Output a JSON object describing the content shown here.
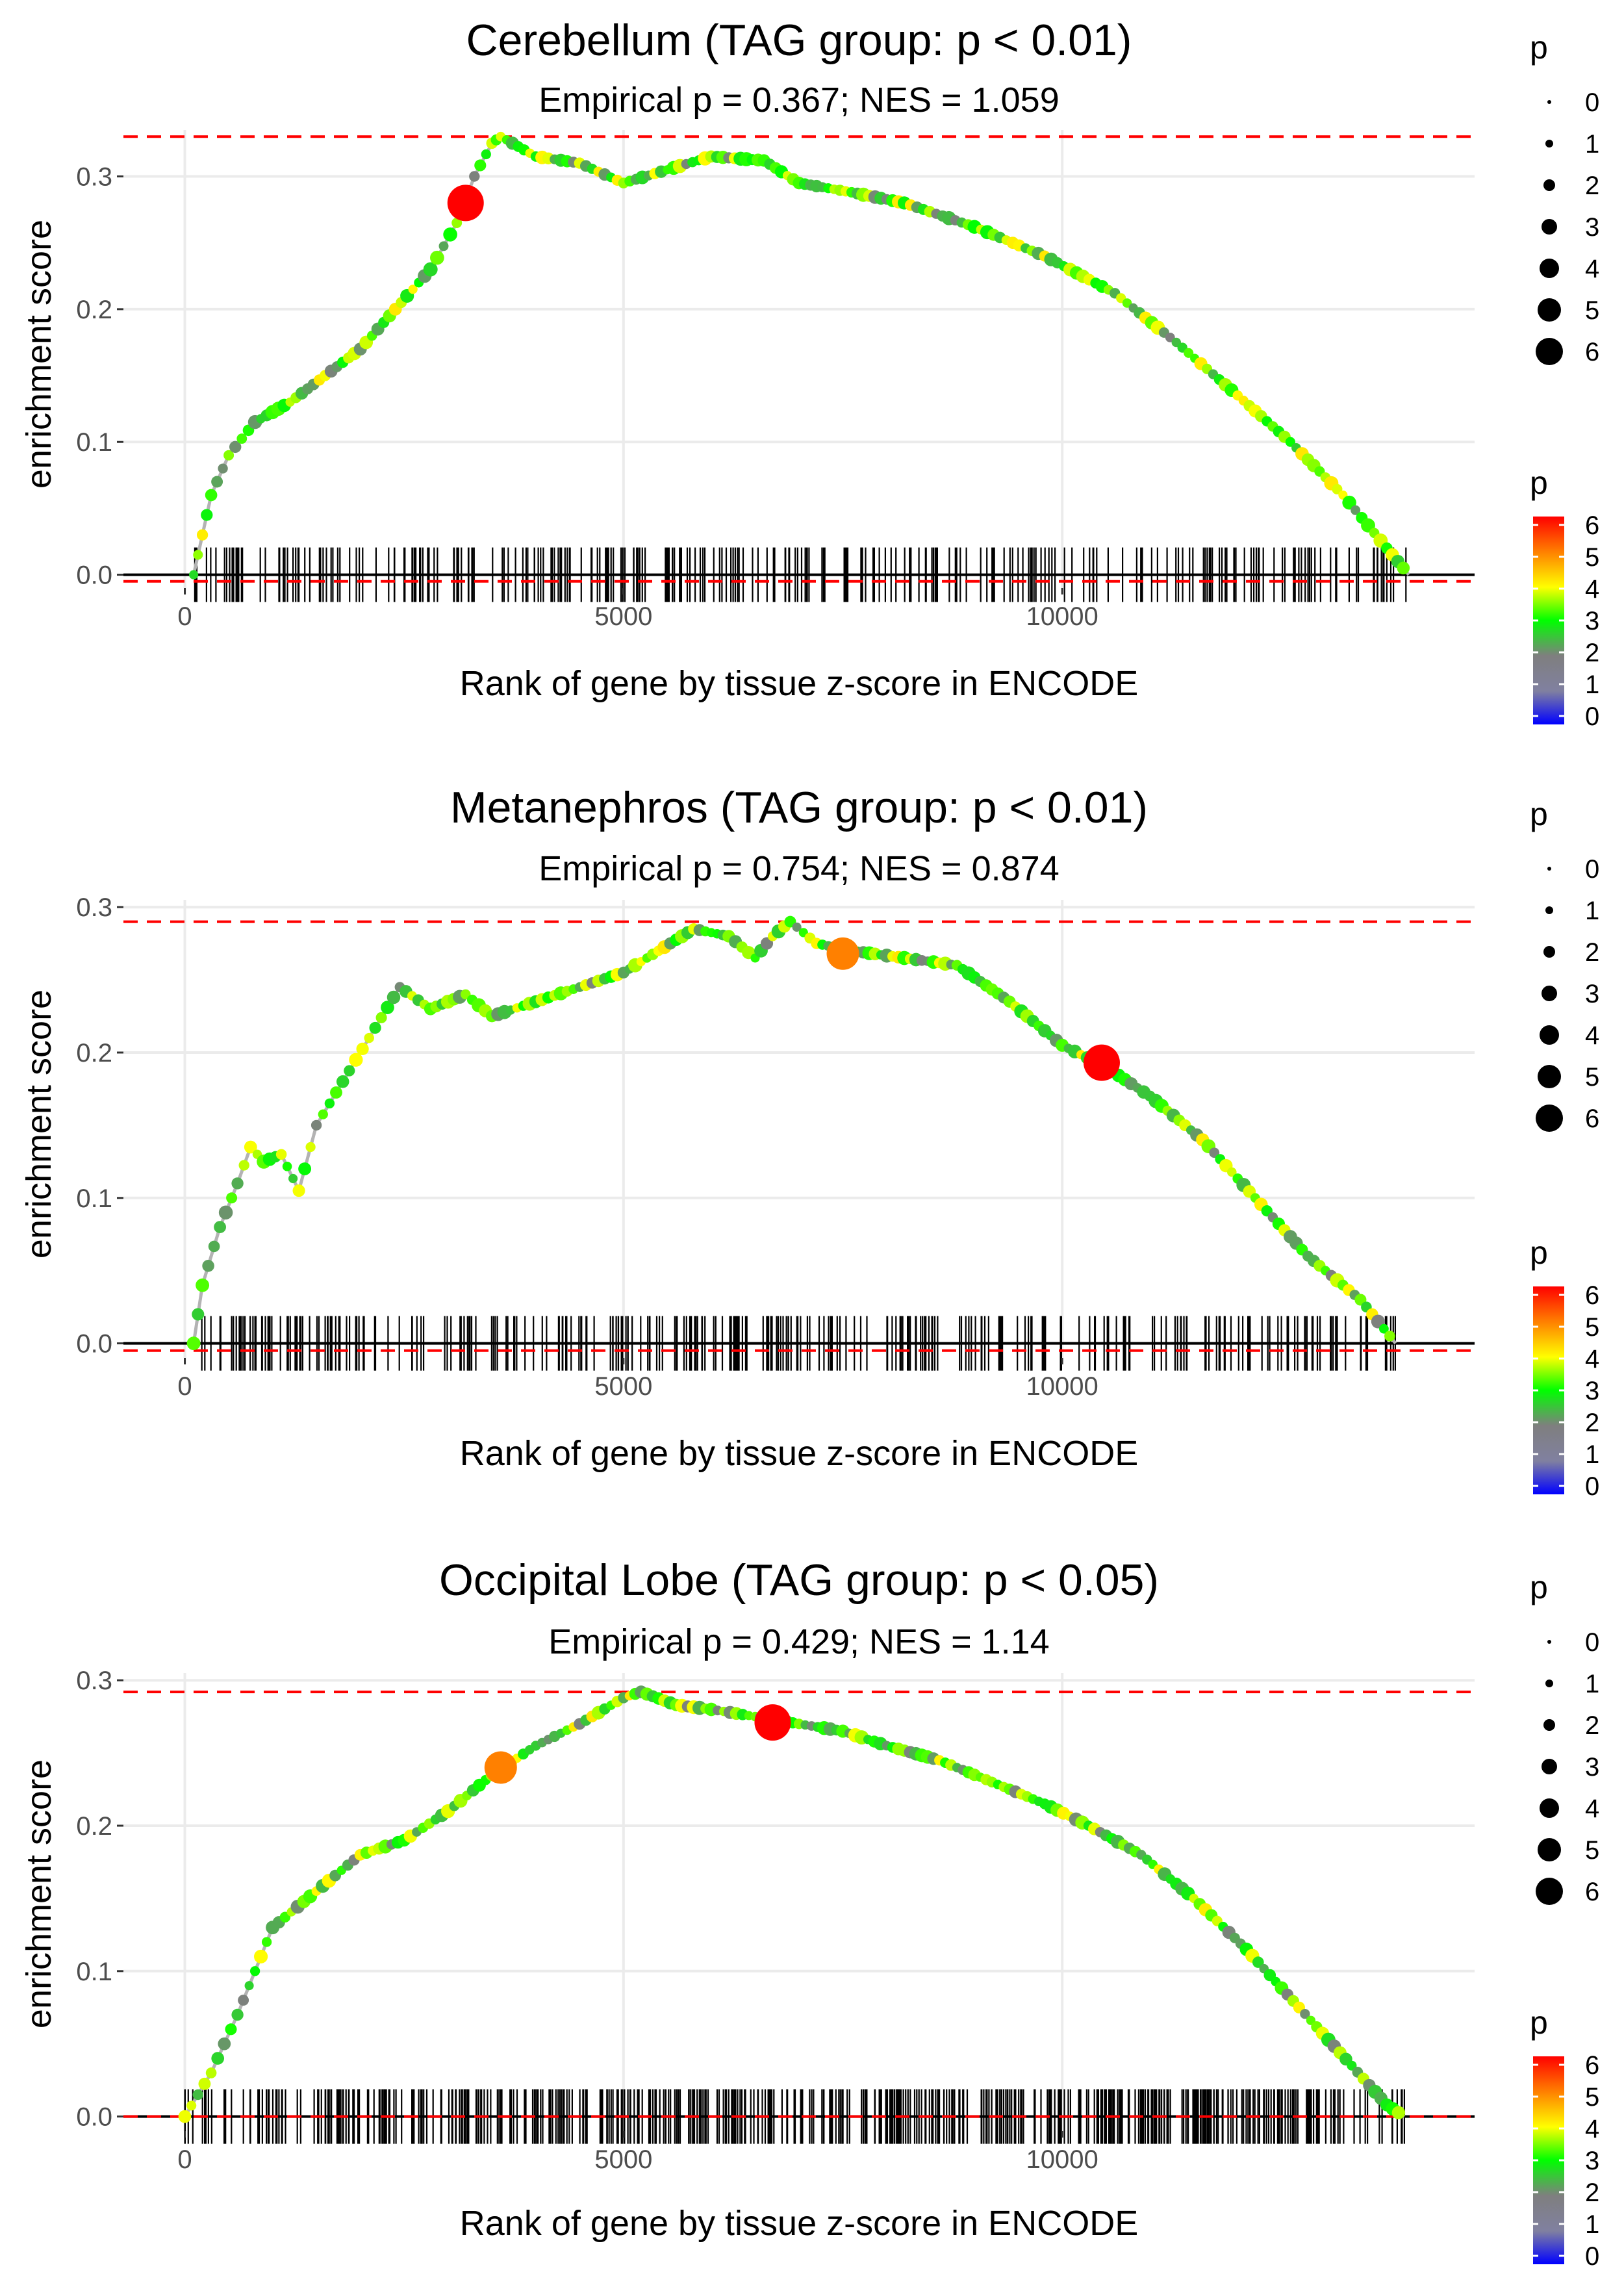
{
  "chart_data": [
    {
      "type": "line",
      "title": "Cerebellum (TAG group: p < 0.01)",
      "subtitle": "Empirical p = 0.367; NES = 1.059",
      "xlabel": "Rank of gene by tissue z-score in ENCODE",
      "ylabel": "enrichment score",
      "xlim": [
        -700,
        14700
      ],
      "ylim": [
        -0.01,
        0.335
      ],
      "x_ticks": [
        0,
        5000,
        10000
      ],
      "x_tick_labels": [
        "0",
        "5000",
        "10000"
      ],
      "y_ticks": [
        0.0,
        0.1,
        0.2,
        0.3
      ],
      "y_tick_labels": [
        "0.0",
        "0.1",
        "0.2",
        "0.3"
      ],
      "max_es": 0.33,
      "min_es": -0.005,
      "curve_points": [
        [
          100,
          0.0
        ],
        [
          200,
          0.03
        ],
        [
          300,
          0.06
        ],
        [
          500,
          0.09
        ],
        [
          800,
          0.115
        ],
        [
          1200,
          0.13
        ],
        [
          1600,
          0.15
        ],
        [
          2000,
          0.17
        ],
        [
          2400,
          0.2
        ],
        [
          2800,
          0.23
        ],
        [
          3100,
          0.265
        ],
        [
          3300,
          0.3
        ],
        [
          3500,
          0.325
        ],
        [
          3600,
          0.33
        ],
        [
          4000,
          0.315
        ],
        [
          4500,
          0.31
        ],
        [
          5000,
          0.295
        ],
        [
          5500,
          0.305
        ],
        [
          6000,
          0.315
        ],
        [
          6600,
          0.312
        ],
        [
          7000,
          0.295
        ],
        [
          7600,
          0.288
        ],
        [
          8200,
          0.28
        ],
        [
          9000,
          0.262
        ],
        [
          9800,
          0.24
        ],
        [
          10600,
          0.212
        ],
        [
          11300,
          0.175
        ],
        [
          12000,
          0.135
        ],
        [
          12600,
          0.1
        ],
        [
          13200,
          0.06
        ],
        [
          13700,
          0.02
        ],
        [
          13950,
          0.0
        ]
      ],
      "highlight_points": [
        {
          "x": 3200,
          "y": 0.28,
          "p": 6
        }
      ],
      "legend_size": {
        "title": "p",
        "labels": [
          "0",
          "1",
          "2",
          "3",
          "4",
          "5",
          "6"
        ]
      },
      "legend_color": {
        "title": "p",
        "labels": [
          "0",
          "1",
          "2",
          "3",
          "4",
          "5",
          "6"
        ]
      }
    },
    {
      "type": "line",
      "title": "Metanephros (TAG group: p < 0.01)",
      "subtitle": "Empirical p = 0.754; NES = 0.874",
      "xlabel": "Rank of gene by tissue z-score in ENCODE",
      "ylabel": "enrichment score",
      "xlim": [
        -700,
        14700
      ],
      "ylim": [
        -0.01,
        0.305
      ],
      "x_ticks": [
        0,
        5000,
        10000
      ],
      "x_tick_labels": [
        "0",
        "5000",
        "10000"
      ],
      "y_ticks": [
        0.0,
        0.1,
        0.2,
        0.3
      ],
      "y_tick_labels": [
        "0.0",
        "0.1",
        "0.2",
        "0.3"
      ],
      "max_es": 0.29,
      "min_es": -0.005,
      "curve_points": [
        [
          100,
          0.0
        ],
        [
          200,
          0.04
        ],
        [
          400,
          0.08
        ],
        [
          600,
          0.11
        ],
        [
          750,
          0.135
        ],
        [
          900,
          0.125
        ],
        [
          1100,
          0.13
        ],
        [
          1300,
          0.105
        ],
        [
          1500,
          0.15
        ],
        [
          1800,
          0.18
        ],
        [
          2100,
          0.21
        ],
        [
          2450,
          0.245
        ],
        [
          2800,
          0.23
        ],
        [
          3200,
          0.24
        ],
        [
          3500,
          0.225
        ],
        [
          4000,
          0.235
        ],
        [
          4500,
          0.245
        ],
        [
          5000,
          0.255
        ],
        [
          5400,
          0.27
        ],
        [
          5800,
          0.285
        ],
        [
          6200,
          0.28
        ],
        [
          6500,
          0.265
        ],
        [
          6700,
          0.28
        ],
        [
          6900,
          0.29
        ],
        [
          7200,
          0.275
        ],
        [
          7600,
          0.27
        ],
        [
          8200,
          0.265
        ],
        [
          8800,
          0.26
        ],
        [
          9400,
          0.235
        ],
        [
          10000,
          0.205
        ],
        [
          10500,
          0.19
        ],
        [
          11000,
          0.17
        ],
        [
          11600,
          0.14
        ],
        [
          12200,
          0.1
        ],
        [
          12800,
          0.06
        ],
        [
          13400,
          0.03
        ],
        [
          13800,
          0.0
        ]
      ],
      "highlight_points": [
        {
          "x": 7500,
          "y": 0.268,
          "p": 5
        },
        {
          "x": 10450,
          "y": 0.193,
          "p": 6
        }
      ],
      "legend_size": {
        "title": "p",
        "labels": [
          "0",
          "1",
          "2",
          "3",
          "4",
          "5",
          "6"
        ]
      },
      "legend_color": {
        "title": "p",
        "labels": [
          "0",
          "1",
          "2",
          "3",
          "4",
          "5",
          "6"
        ]
      }
    },
    {
      "type": "line",
      "title": "Occipital Lobe (TAG group: p < 0.05)",
      "subtitle": "Empirical p = 0.429; NES = 1.14",
      "xlabel": "Rank of gene by tissue z-score in ENCODE",
      "ylabel": "enrichment score",
      "xlim": [
        -700,
        14700
      ],
      "ylim": [
        -0.01,
        0.305
      ],
      "x_ticks": [
        0,
        5000,
        10000
      ],
      "x_tick_labels": [
        "0",
        "5000",
        "10000"
      ],
      "y_ticks": [
        0.0,
        0.1,
        0.2,
        0.3
      ],
      "y_tick_labels": [
        "0.0",
        "0.1",
        "0.2",
        "0.3"
      ],
      "max_es": 0.292,
      "min_es": 0.0,
      "curve_points": [
        [
          0,
          0.0
        ],
        [
          300,
          0.03
        ],
        [
          600,
          0.07
        ],
        [
          1000,
          0.13
        ],
        [
          1500,
          0.155
        ],
        [
          2000,
          0.18
        ],
        [
          2500,
          0.19
        ],
        [
          3000,
          0.21
        ],
        [
          3500,
          0.235
        ],
        [
          4000,
          0.255
        ],
        [
          4500,
          0.27
        ],
        [
          5000,
          0.288
        ],
        [
          5200,
          0.292
        ],
        [
          5600,
          0.283
        ],
        [
          6000,
          0.28
        ],
        [
          6500,
          0.275
        ],
        [
          7000,
          0.27
        ],
        [
          7500,
          0.265
        ],
        [
          8000,
          0.255
        ],
        [
          8600,
          0.245
        ],
        [
          9200,
          0.23
        ],
        [
          9800,
          0.215
        ],
        [
          10300,
          0.2
        ],
        [
          10900,
          0.18
        ],
        [
          11500,
          0.15
        ],
        [
          12100,
          0.115
        ],
        [
          12700,
          0.075
        ],
        [
          13300,
          0.035
        ],
        [
          13700,
          0.008
        ],
        [
          13900,
          0.0
        ]
      ],
      "highlight_points": [
        {
          "x": 3600,
          "y": 0.24,
          "p": 5
        },
        {
          "x": 6700,
          "y": 0.271,
          "p": 6
        }
      ],
      "legend_size": {
        "title": "p",
        "labels": [
          "0",
          "1",
          "2",
          "3",
          "4",
          "5",
          "6"
        ]
      },
      "legend_color": {
        "title": "p",
        "labels": [
          "0",
          "1",
          "2",
          "3",
          "4",
          "5",
          "6"
        ]
      }
    }
  ]
}
